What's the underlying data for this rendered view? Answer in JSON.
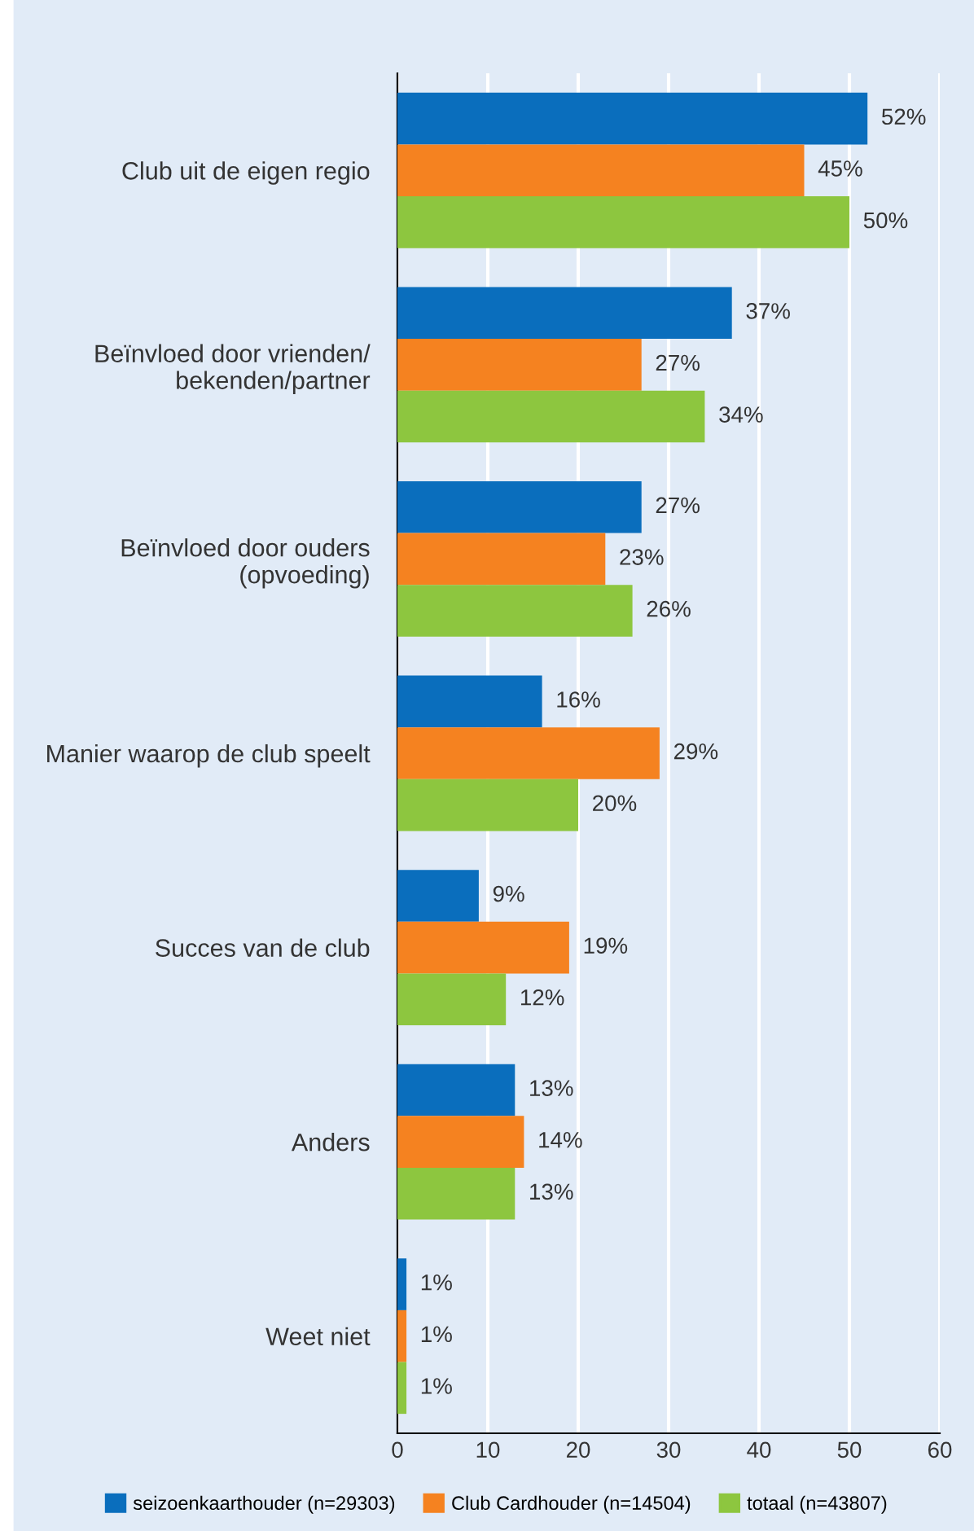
{
  "chart_data": {
    "type": "bar",
    "orientation": "horizontal",
    "categories": [
      "Club uit de eigen regio",
      "Beïnvloed door vrienden/\nbekenden/partner",
      "Beïnvloed door ouders\n(opvoeding)",
      "Manier waarop de club speelt",
      "Succes van de club",
      "Anders",
      "Weet niet"
    ],
    "series": [
      {
        "name": "seizoenkaarthouder (n=29303)",
        "color": "#0a6ebd",
        "values": [
          52,
          37,
          27,
          16,
          9,
          13,
          1
        ],
        "value_labels": [
          "52%",
          "37%",
          "27%",
          "16%",
          "9%",
          "13%",
          "1%"
        ]
      },
      {
        "name": "Club Cardhouder (n=14504)",
        "color": "#f58220",
        "values": [
          45,
          27,
          23,
          29,
          19,
          14,
          1
        ],
        "value_labels": [
          "45%",
          "27%",
          "23%",
          "29%",
          "19%",
          "14%",
          "1%"
        ]
      },
      {
        "name": "totaal (n=43807)",
        "color": "#8dc63f",
        "values": [
          50,
          34,
          26,
          20,
          12,
          13,
          1
        ],
        "value_labels": [
          "50%",
          "34%",
          "26%",
          "20%",
          "12%",
          "13%",
          "1%"
        ]
      }
    ],
    "xlim": [
      0,
      60
    ],
    "xticks": [
      0,
      10,
      20,
      30,
      40,
      50,
      60
    ],
    "grid": "x",
    "legend": "bottom"
  }
}
